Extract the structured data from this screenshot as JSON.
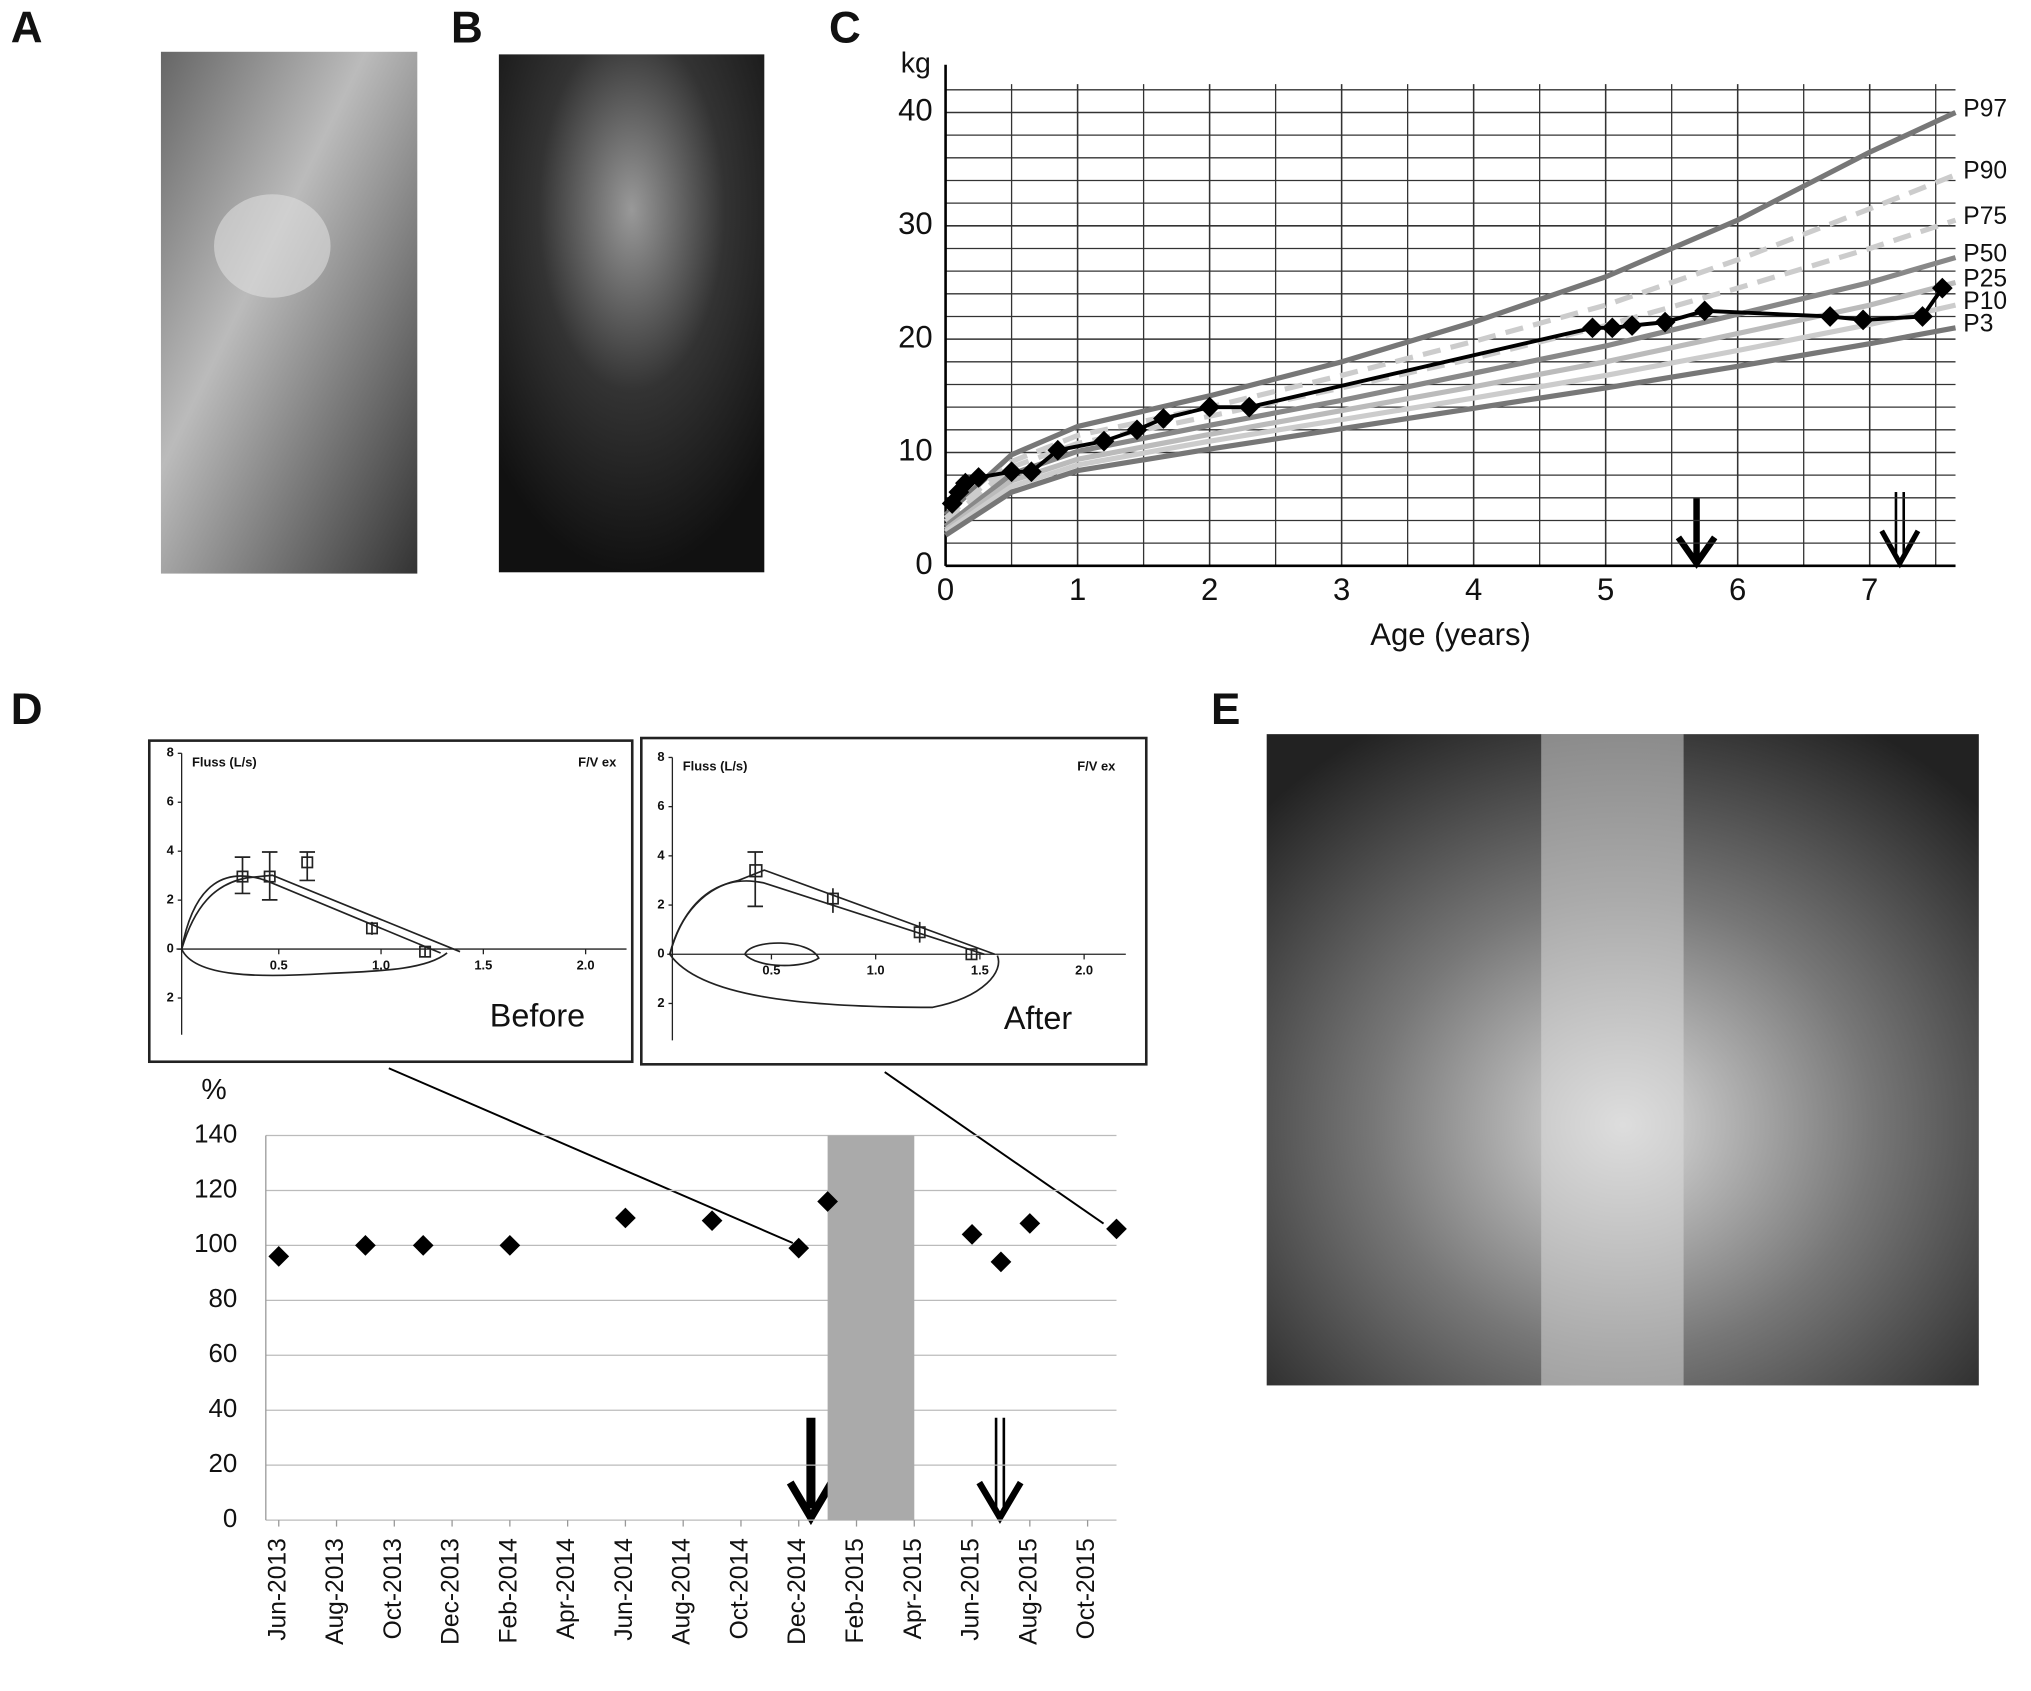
{
  "panel_labels": [
    "A",
    "B",
    "C",
    "D",
    "E"
  ],
  "chart_data": [
    {
      "type": "line",
      "ylabel": "kg",
      "xlabel": "Age (years)",
      "xlim": [
        0,
        7.65
      ],
      "xticks": [
        0,
        1,
        2,
        3,
        4,
        5,
        6,
        7
      ],
      "ylim": [
        0,
        42.5
      ],
      "yticks": [
        0,
        10,
        20,
        30,
        40
      ],
      "xminor": [
        0.5,
        1.5,
        2.5,
        3.5,
        4.5,
        5.5,
        6.5,
        7.5
      ],
      "yminor": [
        2,
        4,
        6,
        8,
        12,
        14,
        16,
        18,
        22,
        24,
        26,
        28,
        32,
        34,
        36,
        38,
        42
      ],
      "grid": true,
      "x": [
        0,
        0.5,
        1,
        2,
        3,
        4,
        5,
        6,
        7,
        7.65
      ],
      "series": [
        {
          "name": "P97",
          "color": "#777777",
          "dashed": false,
          "values": [
            4.5,
            9.8,
            12.3,
            15,
            18,
            21.5,
            25.5,
            30.5,
            36.5,
            40
          ]
        },
        {
          "name": "P90",
          "color": "#cccccc",
          "dashed": true,
          "values": [
            4.2,
            9.2,
            11.5,
            14,
            16.8,
            19.8,
            23,
            27,
            31.5,
            34.5
          ]
        },
        {
          "name": "P75",
          "color": "#cccccc",
          "dashed": true,
          "values": [
            3.9,
            8.7,
            10.8,
            13.2,
            15.7,
            18.3,
            21.2,
            24.5,
            28,
            30.5
          ]
        },
        {
          "name": "P50",
          "color": "#888888",
          "dashed": false,
          "values": [
            3.5,
            8.1,
            10.1,
            12.4,
            14.6,
            17,
            19.4,
            22.2,
            25,
            27.2
          ]
        },
        {
          "name": "P25",
          "color": "#bbbbbb",
          "dashed": false,
          "values": [
            3.2,
            7.5,
            9.4,
            11.6,
            13.7,
            15.8,
            18,
            20.5,
            23,
            25
          ]
        },
        {
          "name": "P10",
          "color": "#cccccc",
          "dashed": false,
          "values": [
            3,
            7,
            8.9,
            11,
            12.9,
            14.8,
            16.8,
            19,
            21.3,
            23
          ]
        },
        {
          "name": "P3",
          "color": "#777777",
          "dashed": false,
          "values": [
            2.7,
            6.5,
            8.4,
            10.3,
            12.1,
            13.9,
            15.7,
            17.6,
            19.6,
            21
          ]
        },
        {
          "color": "#000000",
          "markers": true,
          "x": [
            0.05,
            0.1,
            0.15,
            0.25,
            0.5,
            0.65,
            0.85,
            1.2,
            1.45,
            1.65,
            2,
            2.3,
            4.9,
            5.05,
            5.2,
            5.45,
            5.75,
            6.7,
            6.95,
            7.4,
            7.55
          ],
          "values": [
            5.5,
            6.5,
            7.3,
            7.8,
            8.3,
            8.3,
            10.2,
            11,
            12,
            13,
            14,
            14,
            21,
            21,
            21.2,
            21.5,
            22.5,
            22,
            21.7,
            22,
            24.5
          ]
        }
      ]
    },
    {
      "type": "scatter",
      "ylabel": "%",
      "color": "#000000",
      "xlim": [
        "2013-06",
        "2015-11"
      ],
      "xticks": [
        {
          "value": "2013-06",
          "label": "Jun-2013"
        },
        {
          "value": "2013-08",
          "label": "Aug-2013"
        },
        {
          "value": "2013-10",
          "label": "Oct-2013"
        },
        {
          "value": "2013-12",
          "label": "Dec-2013"
        },
        {
          "value": "2014-02",
          "label": "Feb-2014"
        },
        {
          "value": "2014-04",
          "label": "Apr-2014"
        },
        {
          "value": "2014-06",
          "label": "Jun-2014"
        },
        {
          "value": "2014-08",
          "label": "Aug-2014"
        },
        {
          "value": "2014-10",
          "label": "Oct-2014"
        },
        {
          "value": "2014-12",
          "label": "Dec-2014"
        },
        {
          "value": "2015-02",
          "label": "Feb-2015"
        },
        {
          "value": "2015-04",
          "label": "Apr-2015"
        },
        {
          "value": "2015-06",
          "label": "Jun-2015"
        },
        {
          "value": "2015-08",
          "label": "Aug-2015"
        },
        {
          "value": "2015-10",
          "label": "Oct-2015"
        }
      ],
      "ylim": [
        0,
        140
      ],
      "yticks": [
        0,
        20,
        40,
        60,
        80,
        100,
        120,
        140
      ],
      "grid": true,
      "x": [
        "2013-06",
        "2013-09",
        "2013-11",
        "2014-02",
        "2014-06",
        "2014-09",
        "2014-12",
        "2015-01",
        "2015-06",
        "2015-07",
        "2015-08",
        "2015-11"
      ],
      "values": [
        96,
        100,
        100,
        100,
        110,
        109,
        99,
        116,
        104,
        94,
        108,
        106
      ],
      "shaded": {
        "from": "2015-01",
        "to": "2015-04",
        "color": "#aaaaaa"
      },
      "insets": [
        {
          "title": "Fluss (L/s)",
          "mode": "F/V ex",
          "label": "Before",
          "yticks": [
            8,
            6,
            4,
            2,
            0,
            {
              "value": -2,
              "label": "2"
            }
          ],
          "xticks": [
            {
              "value": 0.5,
              "label": "0.5"
            },
            {
              "value": 1,
              "label": "1.0"
            },
            {
              "value": 1.5,
              "label": "1.5"
            },
            {
              "value": 2,
              "label": "2.0"
            }
          ]
        },
        {
          "title": "Fluss (L/s)",
          "mode": "F/V ex",
          "label": "After",
          "yticks": [
            8,
            6,
            4,
            2,
            0,
            {
              "value": -2,
              "label": "2"
            }
          ],
          "xticks": [
            {
              "value": 0.5,
              "label": "0.5"
            },
            {
              "value": 1,
              "label": "1.0"
            },
            {
              "value": 1.5,
              "label": "1.5"
            },
            {
              "value": 2,
              "label": "2.0"
            }
          ]
        }
      ]
    }
  ]
}
